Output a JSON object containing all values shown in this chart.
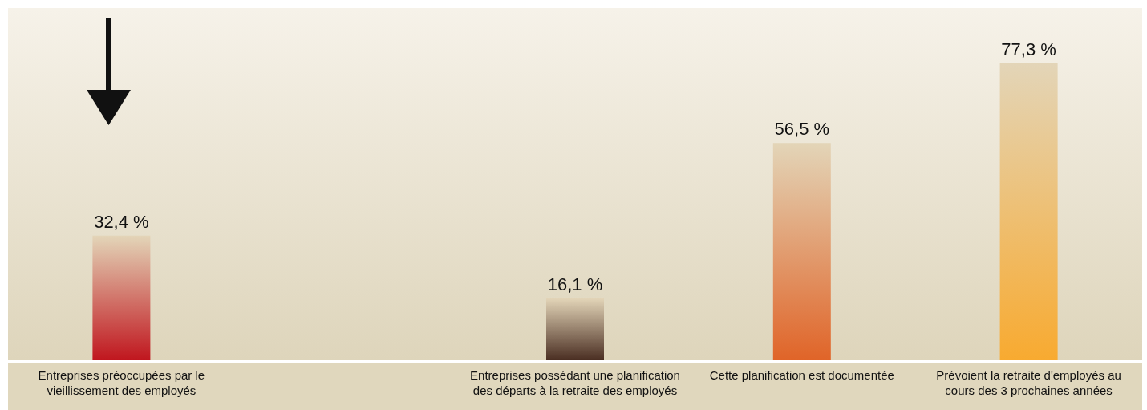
{
  "chart_data": {
    "type": "bar",
    "categories": [
      "Entreprises préoccupées par le vieillissement des employés",
      null,
      "Entreprises possédant une planification des départs à la retraite des employés",
      "Cette planification est documentée",
      "Prévoient la retraite d'employés au cours des 3 prochaines années"
    ],
    "values": [
      32.4,
      null,
      16.1,
      56.5,
      77.3
    ],
    "colors": [
      "#c0161e",
      null,
      "#4a2e22",
      "#e06428",
      "#f8aa30"
    ],
    "value_labels": [
      "32,4 %",
      null,
      "16,1 %",
      "56,5 %",
      "77,3 %"
    ],
    "ylim": [
      0,
      91.6
    ],
    "tick_labels": "x"
  }
}
